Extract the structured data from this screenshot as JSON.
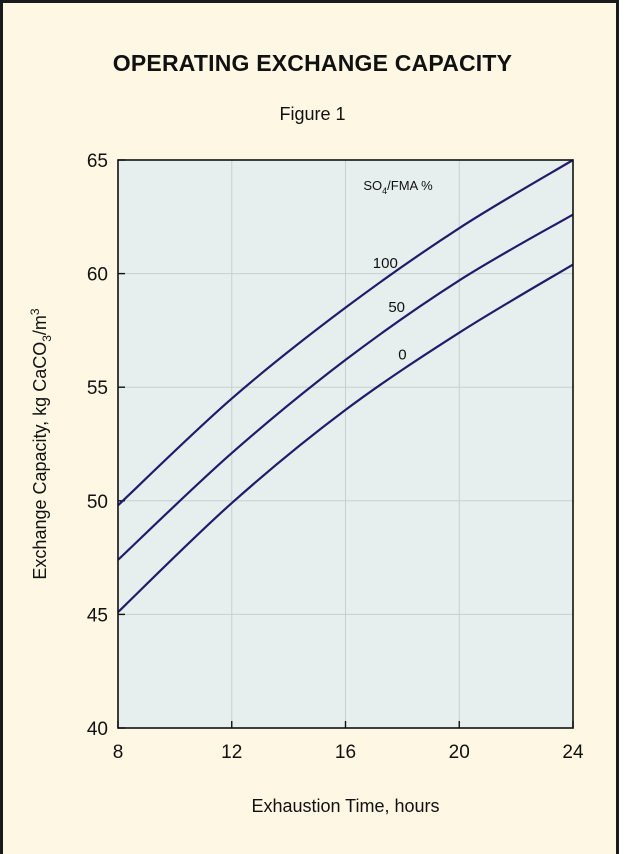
{
  "chart_data": {
    "type": "line",
    "title": "OPERATING EXCHANGE CAPACITY",
    "subtitle": "Figure 1",
    "xlabel": "Exhaustion Time, hours",
    "ylabel_parts": {
      "a": "Exchange Capacity, kg CaCO",
      "sub": "3",
      "b": "/m",
      "sup": "3"
    },
    "legend_title_parts": {
      "a": "SO",
      "sub": "4",
      "b": "/FMA %"
    },
    "xlim": [
      8,
      24
    ],
    "ylim": [
      40,
      65
    ],
    "x_ticks": [
      8,
      12,
      16,
      20,
      24
    ],
    "y_ticks": [
      40,
      45,
      50,
      55,
      60,
      65
    ],
    "grid": true,
    "series": [
      {
        "name": "100",
        "x": [
          8,
          12,
          16,
          20,
          24
        ],
        "values": [
          49.8,
          54.5,
          58.5,
          62.0,
          65.0
        ]
      },
      {
        "name": "50",
        "x": [
          8,
          12,
          16,
          20,
          24
        ],
        "values": [
          47.4,
          52.1,
          56.2,
          59.7,
          62.6
        ]
      },
      {
        "name": "0",
        "x": [
          8,
          12,
          16,
          20,
          24
        ],
        "values": [
          45.1,
          49.9,
          54.0,
          57.4,
          60.4
        ]
      }
    ],
    "colors": {
      "line": "#1f1d6b",
      "plot_bg": "#e6efed",
      "page_bg": "#fef7e4",
      "grid": "#c8cfcd"
    }
  }
}
